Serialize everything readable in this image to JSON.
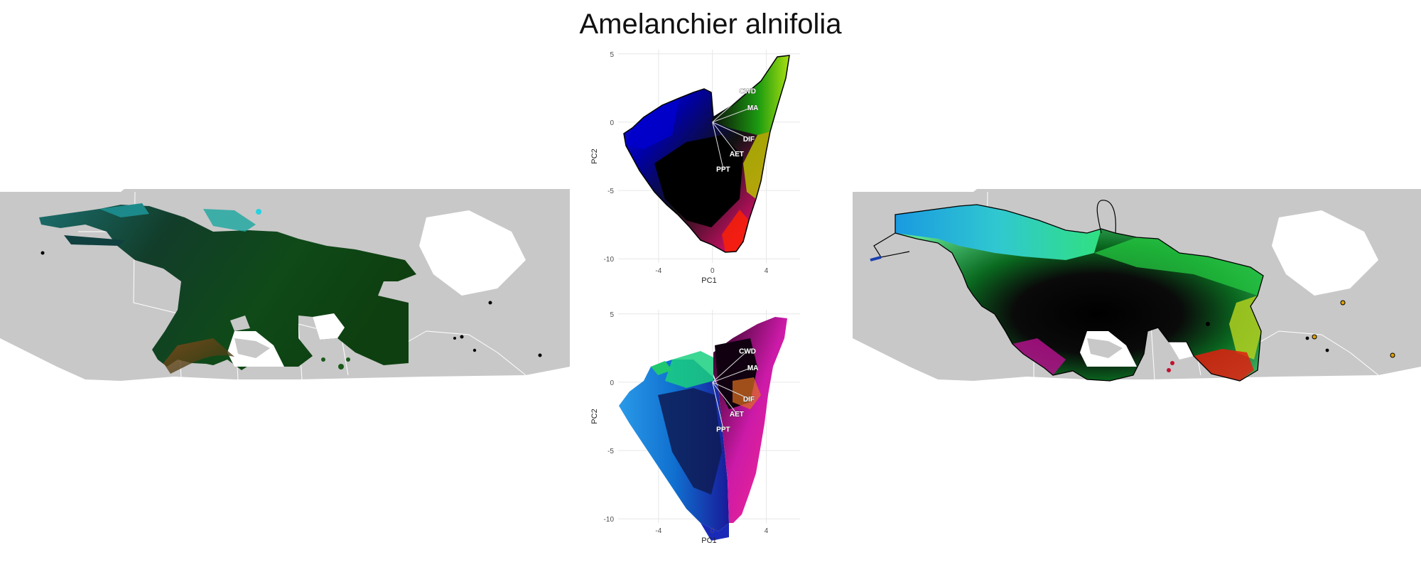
{
  "title": "Amelanchier alnifolia",
  "chart_data": [
    {
      "type": "map",
      "panel": "left-map",
      "description_colors": {
        "land": "#c8c8c8",
        "borders": "#ffffff"
      }
    },
    {
      "type": "scatter",
      "panel": "pca-top",
      "xlabel": "PC1",
      "ylabel": "PC2",
      "xlim": [
        -7,
        6.5
      ],
      "ylim": [
        -10.3,
        5.3
      ],
      "xticks": [
        -4,
        0,
        4
      ],
      "yticks": [
        5,
        0,
        -5,
        -10
      ],
      "grid": true,
      "loadings": [
        {
          "label": "CWD",
          "x": 2.6,
          "y": 2.3
        },
        {
          "label": "MA",
          "x": 3.0,
          "y": 1.1
        },
        {
          "label": "DIF",
          "x": 2.7,
          "y": -1.2
        },
        {
          "label": "AET",
          "x": 1.8,
          "y": -2.3
        },
        {
          "label": "PPT",
          "x": 0.8,
          "y": -3.4
        }
      ]
    },
    {
      "type": "scatter",
      "panel": "pca-bottom",
      "xlabel": "PC1",
      "ylabel": "PC2",
      "xlim": [
        -7,
        6.5
      ],
      "ylim": [
        -10.3,
        5.3
      ],
      "xticks": [
        -4,
        0,
        4
      ],
      "yticks": [
        5,
        0,
        -5,
        -10
      ],
      "grid": true,
      "loadings": [
        {
          "label": "CWD",
          "x": 2.6,
          "y": 2.3
        },
        {
          "label": "MA",
          "x": 3.0,
          "y": 1.1
        },
        {
          "label": "DIF",
          "x": 2.7,
          "y": -1.2
        },
        {
          "label": "AET",
          "x": 1.8,
          "y": -2.3
        },
        {
          "label": "PPT",
          "x": 0.8,
          "y": -3.4
        }
      ]
    },
    {
      "type": "map",
      "panel": "right-map",
      "description_colors": {
        "land": "#c8c8c8",
        "borders": "#ffffff",
        "outline": "#000000"
      }
    }
  ],
  "colors": {
    "land": "#c8c8c8",
    "grid": "#e6e6e6",
    "tick_text": "#4d4d4d",
    "axis_title": "#222222"
  }
}
